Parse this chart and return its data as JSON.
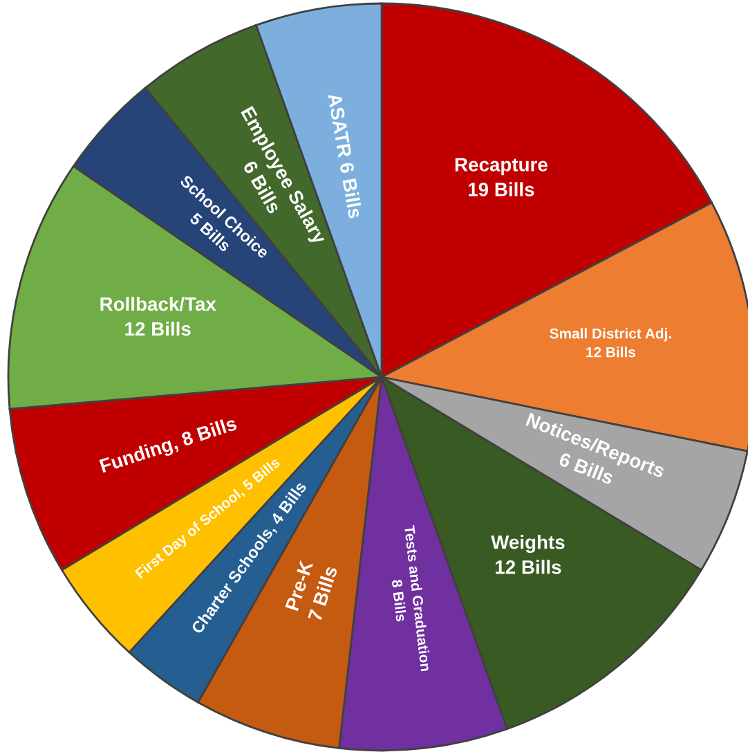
{
  "chart_data": {
    "type": "pie",
    "categories": [
      "Recapture\n19 Bills",
      "Small District Adj.\n12 Bills",
      "Notices/Reports\n6 Bills",
      "Weights\n12 Bills",
      "Tests and Graduation\n8 Bills",
      "Pre-K\n7 Bills",
      "Charter Schools, 4 Bills",
      "First Day of School, 5 Bills",
      "Funding, 8 Bills",
      "Rollback/Tax\n12 Bills",
      "School Choice\n5 Bills",
      "Employee Salary\n6 Bills",
      "ASATR 6 Bills"
    ],
    "values": [
      19,
      12,
      6,
      12,
      8,
      7,
      4,
      5,
      8,
      12,
      5,
      6,
      6
    ],
    "colors": [
      "#c00000",
      "#ed7d31",
      "#a5a5a5",
      "#3a5a24",
      "#7030a0",
      "#c55a11",
      "#255e91",
      "#ffc000",
      "#c00000",
      "#70ad47",
      "#264478",
      "#43682b",
      "#7cafdd"
    ],
    "legend": false
  }
}
